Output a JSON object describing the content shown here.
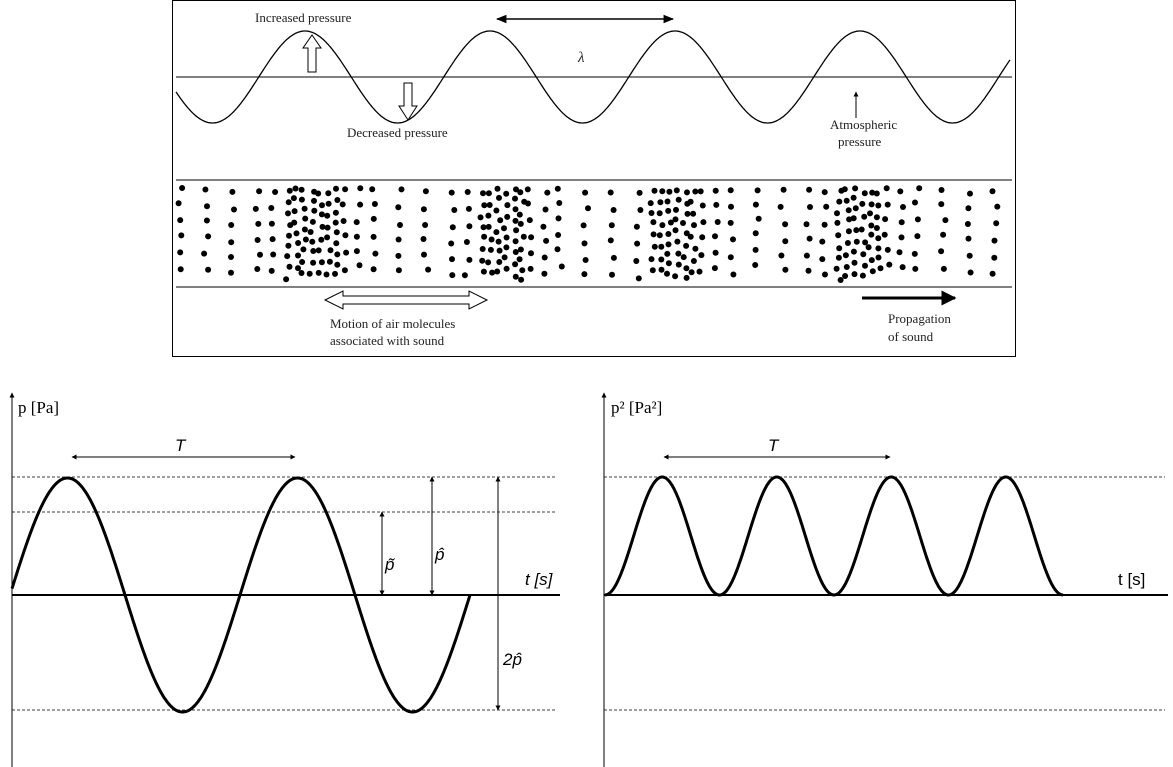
{
  "wave_diagram": {
    "increased": "Increased pressure",
    "wavelength": "λ",
    "decreased": "Decreased pressure",
    "atmospheric": [
      "Atmospheric",
      "pressure"
    ],
    "motion": [
      "Motion of air molecules",
      "associated with sound"
    ],
    "propagation": [
      "Propagation",
      "of sound"
    ]
  },
  "pressure_plot": {
    "y_label": "p [Pa]",
    "period": "T",
    "rms": "p̃",
    "peak": "p̂",
    "peak_to_peak": "2p̂",
    "x_label": "t [s]"
  },
  "squared_plot": {
    "y_label": "p² [Pa²]",
    "period": "T",
    "x_label": "t [s]"
  }
}
